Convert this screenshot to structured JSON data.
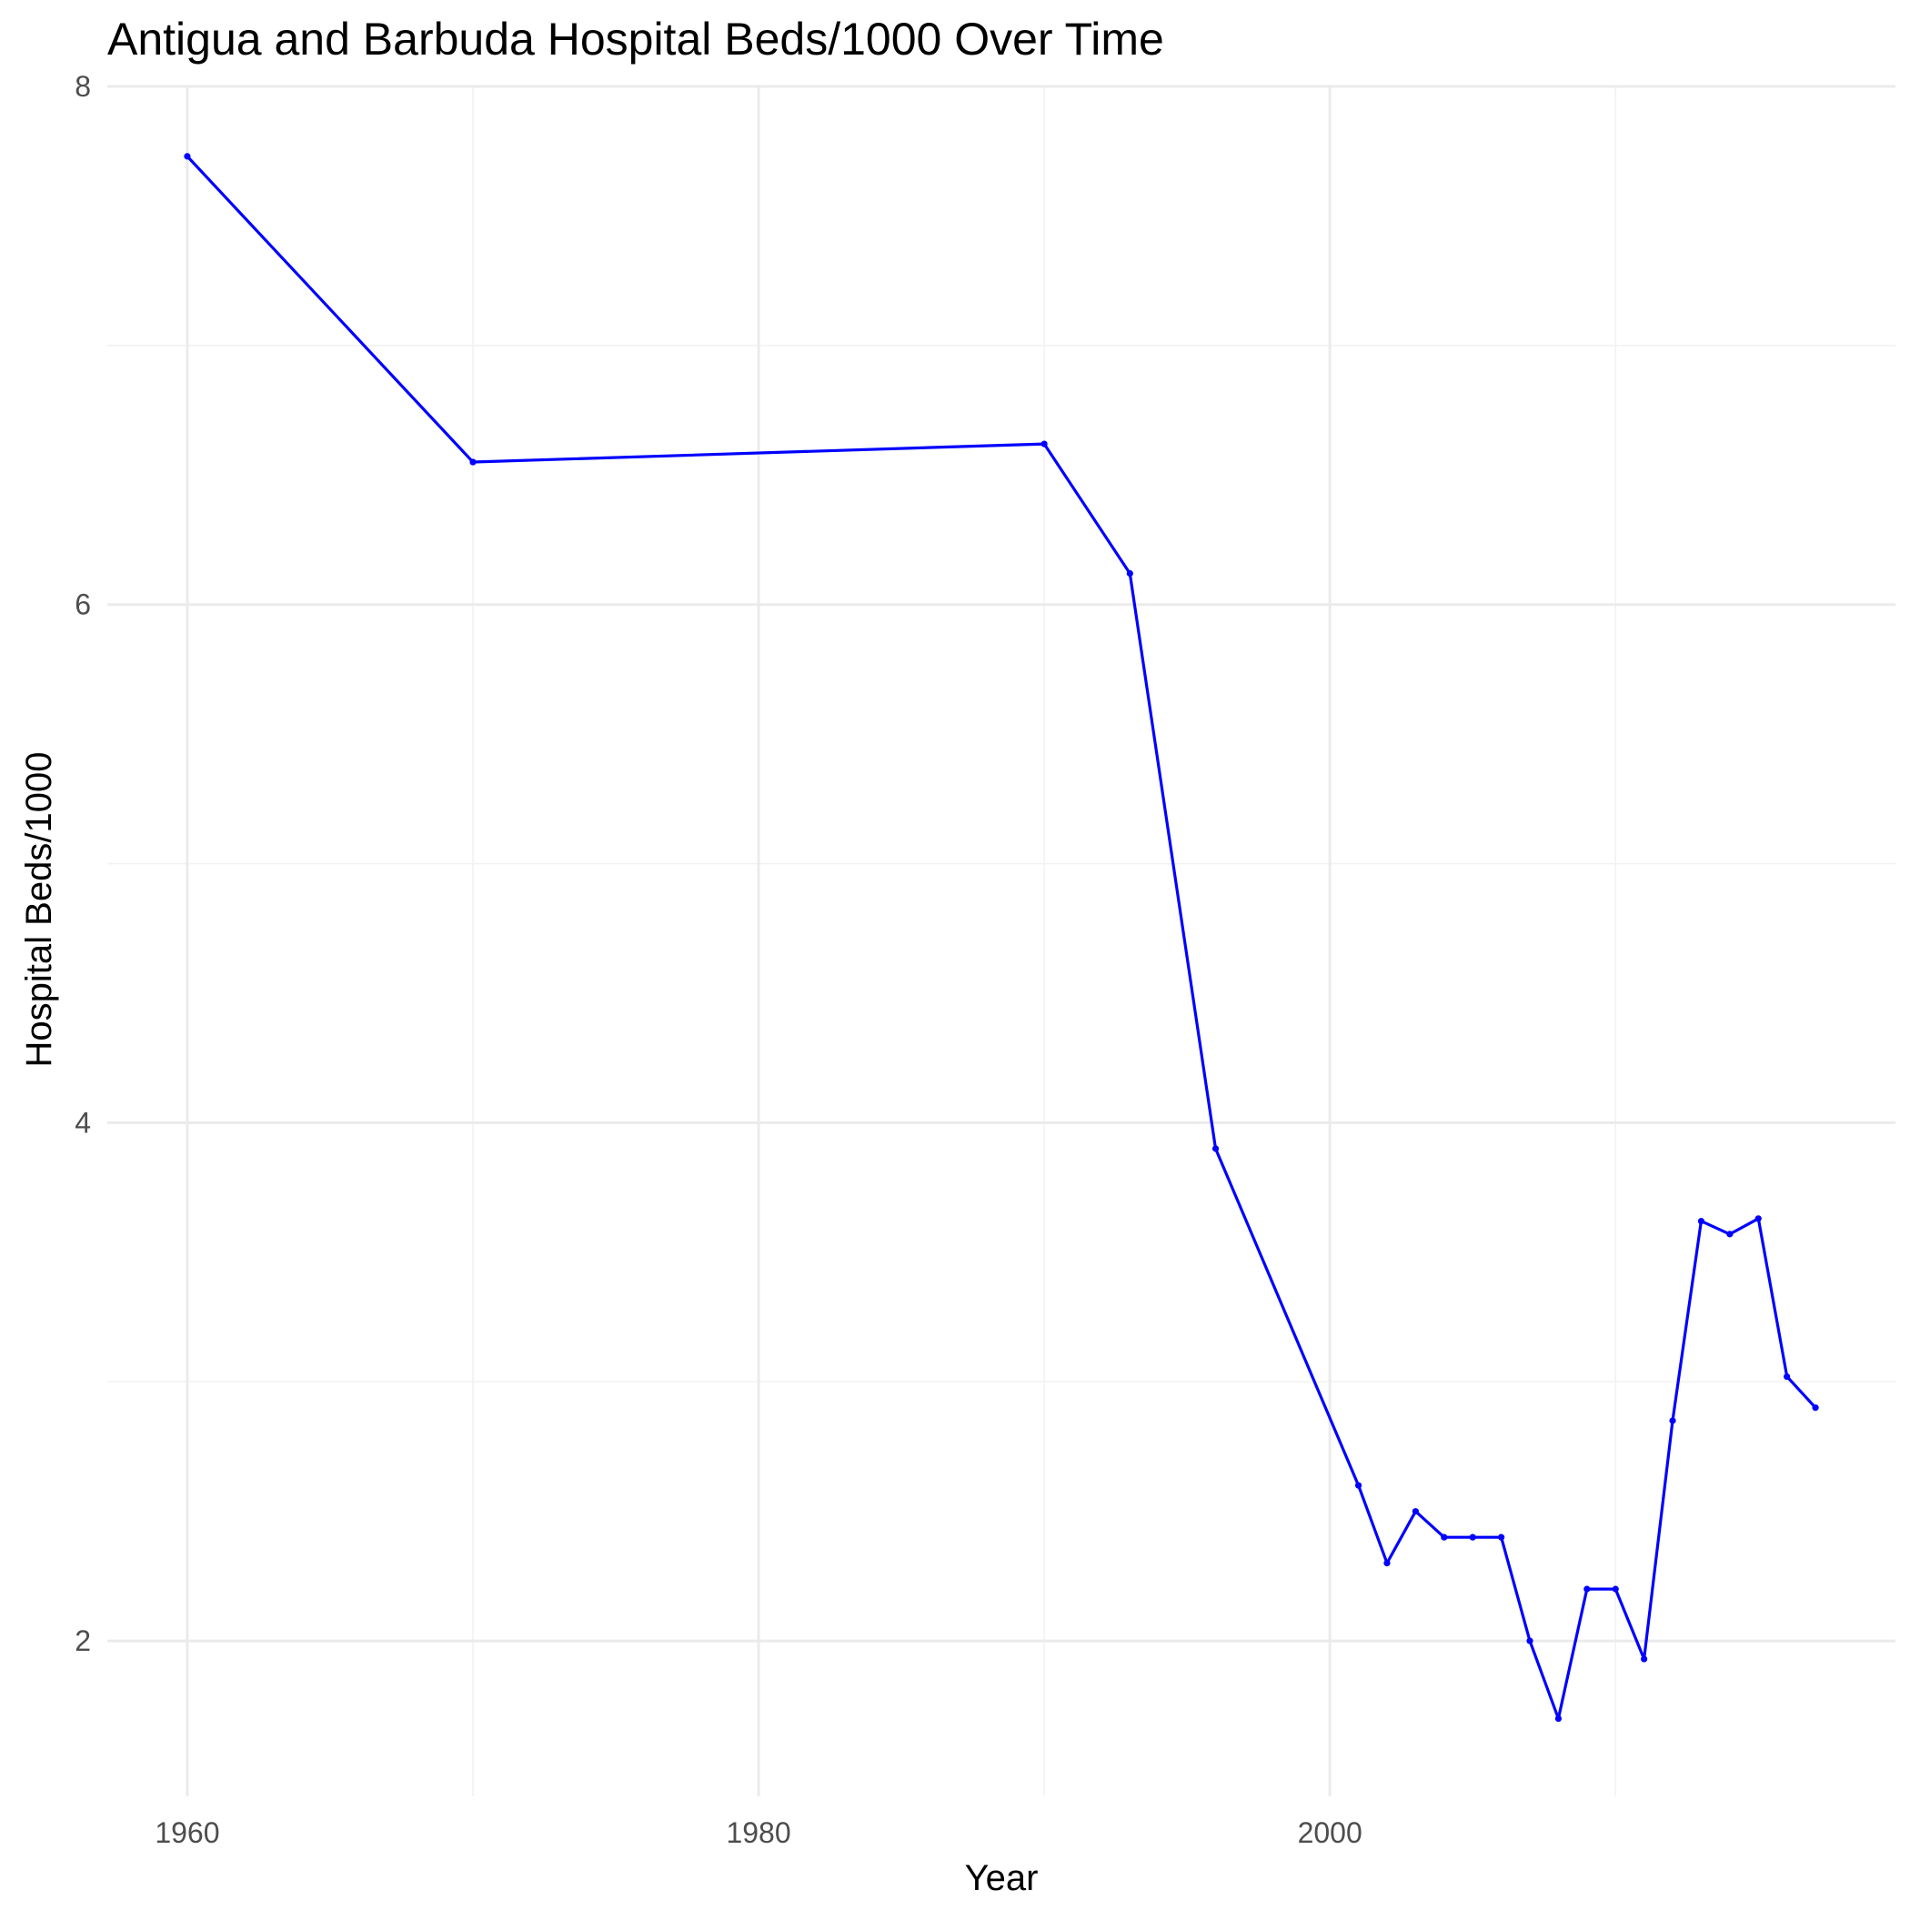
{
  "chart_data": {
    "type": "line",
    "title": "Antigua and Barbuda Hospital Beds/1000 Over Time",
    "xlabel": "Year",
    "ylabel": "Hospital Beds/1000",
    "xlim": [
      1957.2,
      2019.8
    ],
    "ylim": [
      1.4,
      8.0
    ],
    "x_ticks": [
      1960,
      1980,
      2000
    ],
    "x_tick_labels": [
      "1960",
      "1980",
      "2000"
    ],
    "y_ticks": [
      2,
      4,
      6,
      8
    ],
    "y_tick_labels": [
      "2",
      "4",
      "6",
      "8"
    ],
    "x_minor": [
      1970,
      1990,
      2010
    ],
    "y_minor": [
      3,
      5,
      7
    ],
    "grid": true,
    "legend": "none",
    "series": [
      {
        "color": "#0000ff",
        "x": [
          1960,
          1970,
          1990,
          1993,
          1996,
          2001,
          2002,
          2003,
          2004,
          2005,
          2006,
          2007,
          2008,
          2009,
          2010,
          2011,
          2012,
          2013,
          2014,
          2015,
          2016,
          2017
        ],
        "values": [
          7.73,
          6.55,
          6.62,
          6.12,
          3.9,
          2.6,
          2.3,
          2.5,
          2.4,
          2.4,
          2.4,
          2.0,
          1.7,
          2.2,
          2.2,
          1.93,
          2.85,
          3.62,
          3.57,
          3.63,
          3.02,
          2.9
        ]
      }
    ]
  }
}
